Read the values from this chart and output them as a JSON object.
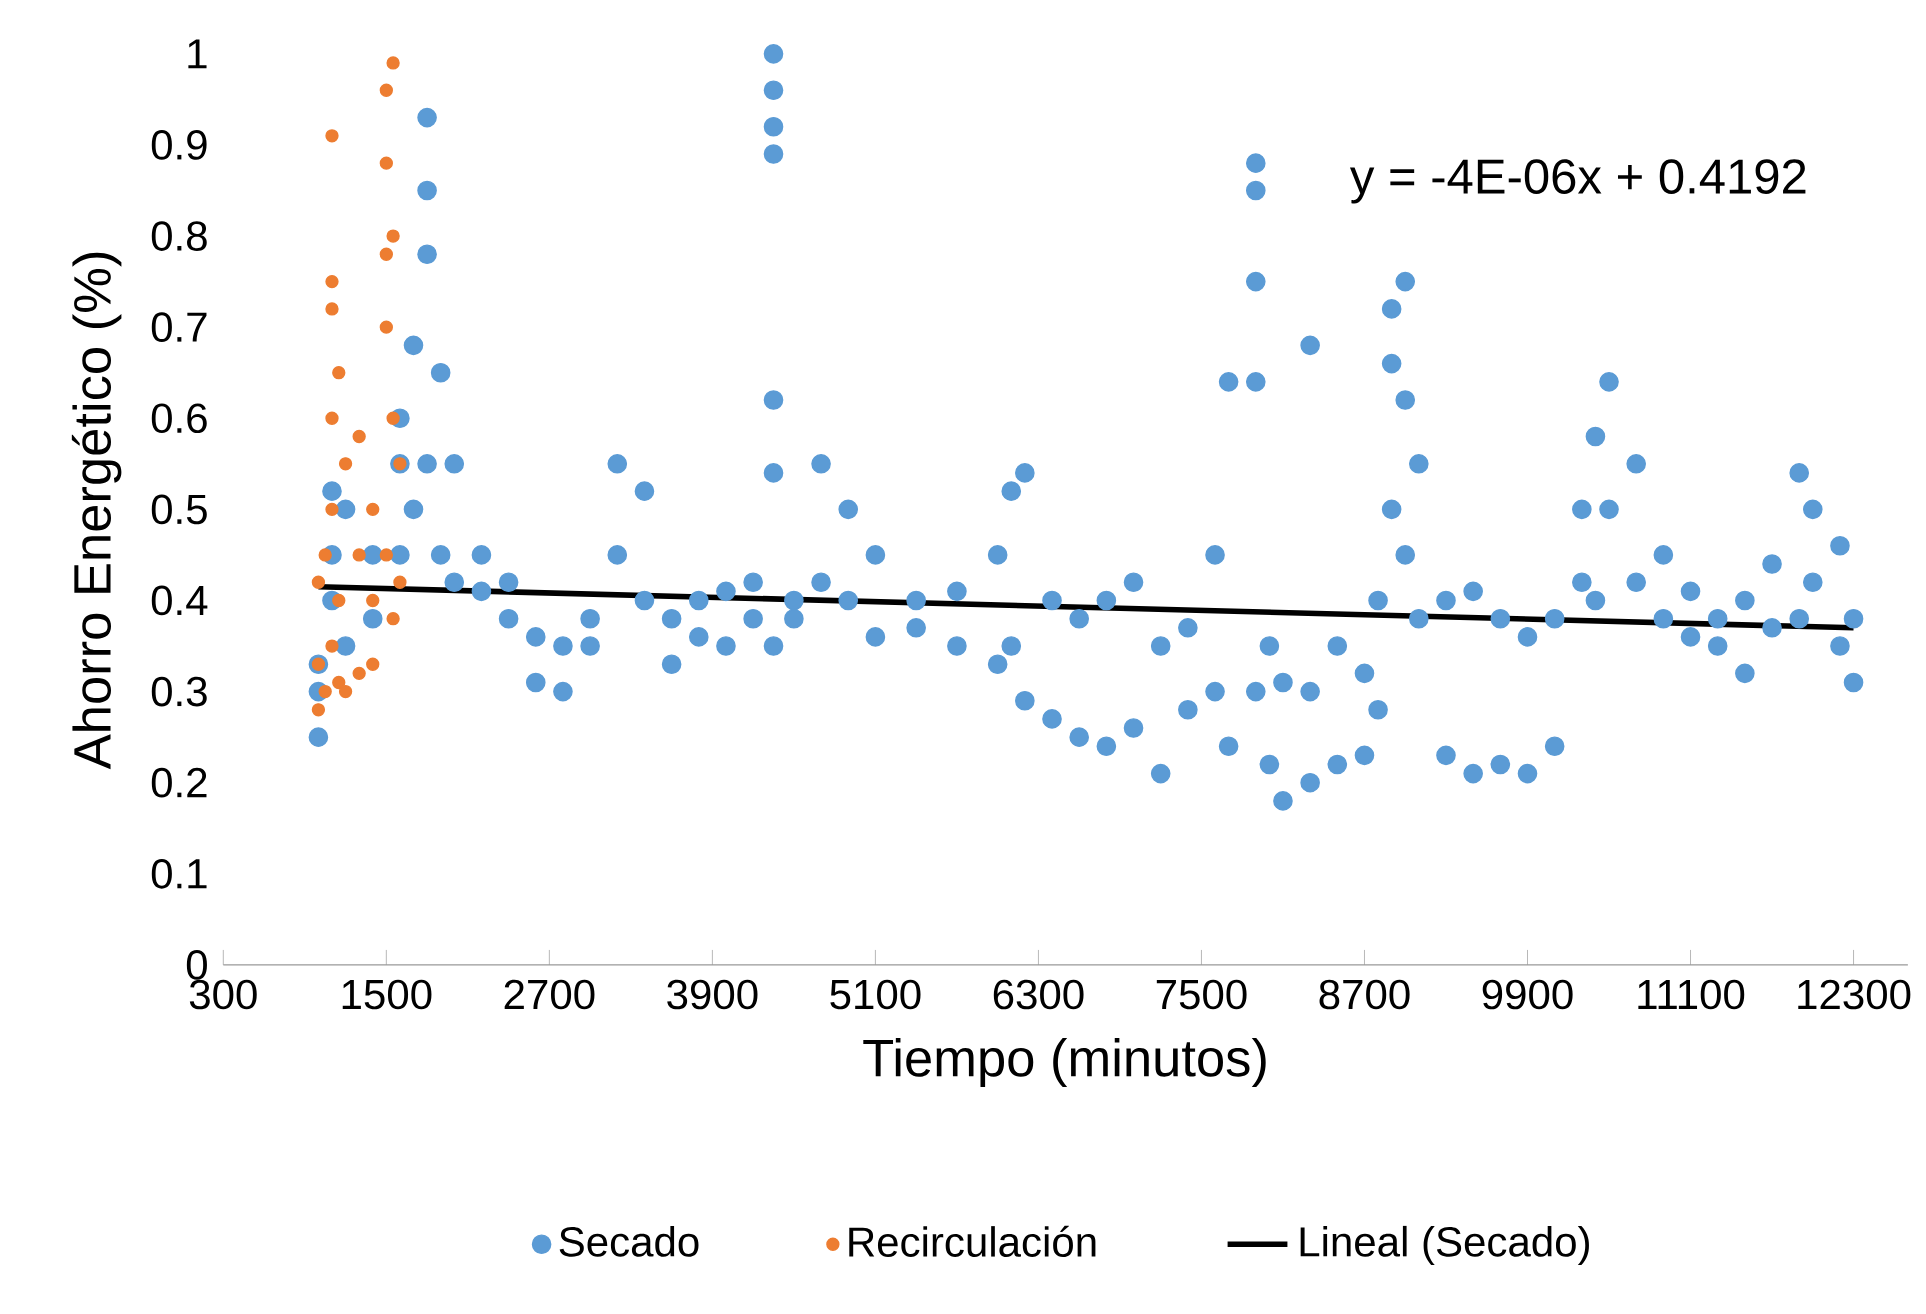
{
  "chart_data": {
    "type": "scatter",
    "xlabel": "Tiempo (minutos)",
    "ylabel": "Ahorro Energético (%)",
    "xlim": [
      300,
      12700
    ],
    "ylim": [
      0,
      1
    ],
    "xticks": [
      300,
      1500,
      2700,
      3900,
      5100,
      6300,
      7500,
      8700,
      9900,
      11100,
      12300
    ],
    "yticks": [
      0,
      {
        "value": 0.1,
        "label": "0.1"
      },
      {
        "value": 0.2,
        "label": "0.2"
      },
      {
        "value": 0.3,
        "label": "0.3"
      },
      {
        "value": 0.4,
        "label": "0.4"
      },
      {
        "value": 0.5,
        "label": "0.5"
      },
      {
        "value": 0.6,
        "label": "0.6"
      },
      {
        "value": 0.7,
        "label": "0.7"
      },
      {
        "value": 0.8,
        "label": "0.8"
      },
      {
        "value": 0.9,
        "label": "0.9"
      },
      1
    ],
    "grid": false,
    "legend": "bottom",
    "annotations": [
      "y = -4E-06x + 0.4192"
    ],
    "series": [
      {
        "name": "Secado",
        "color": "#5b9bd5",
        "x": [
          1000,
          1000,
          1000,
          1100,
          1100,
          1100,
          1200,
          1200,
          1400,
          1400,
          1600,
          1600,
          1600,
          1700,
          1700,
          1800,
          1800,
          1800,
          1800,
          1900,
          1900,
          2000,
          2000,
          2200,
          2200,
          2400,
          2400,
          2600,
          2600,
          2800,
          2800,
          3000,
          3000,
          3200,
          3200,
          3400,
          3400,
          3600,
          3600,
          3800,
          3800,
          4000,
          4000,
          4200,
          4200,
          4350,
          4350,
          4350,
          4350,
          4350,
          4350,
          4350,
          4500,
          4500,
          4700,
          4700,
          4900,
          4900,
          5100,
          5100,
          5400,
          5400,
          5700,
          5700,
          6000,
          6000,
          6100,
          6100,
          6200,
          6200,
          6400,
          6400,
          6600,
          6600,
          6800,
          6800,
          7000,
          7000,
          7200,
          7200,
          7400,
          7400,
          7600,
          7600,
          7700,
          7700,
          7900,
          7900,
          7900,
          7900,
          7900,
          8000,
          8000,
          8100,
          8100,
          8300,
          8300,
          8300,
          8500,
          8500,
          8700,
          8700,
          8800,
          8800,
          8900,
          8900,
          8900,
          9000,
          9000,
          9000,
          9100,
          9100,
          9300,
          9300,
          9500,
          9500,
          9700,
          9700,
          9900,
          9900,
          10100,
          10100,
          10300,
          10300,
          10400,
          10400,
          10500,
          10500,
          10700,
          10700,
          10900,
          10900,
          11100,
          11100,
          11300,
          11300,
          11500,
          11500,
          11700,
          11700,
          11900,
          11900,
          12000,
          12000,
          12200,
          12200,
          12300,
          12300
        ],
        "values": [
          0.25,
          0.3,
          0.33,
          0.4,
          0.45,
          0.52,
          0.5,
          0.35,
          0.45,
          0.38,
          0.55,
          0.6,
          0.45,
          0.68,
          0.5,
          0.93,
          0.85,
          0.78,
          0.55,
          0.65,
          0.45,
          0.55,
          0.42,
          0.45,
          0.41,
          0.42,
          0.38,
          0.31,
          0.36,
          0.35,
          0.3,
          0.38,
          0.35,
          0.45,
          0.55,
          0.52,
          0.4,
          0.38,
          0.33,
          0.4,
          0.36,
          0.41,
          0.35,
          0.38,
          0.42,
          1.0,
          0.96,
          0.92,
          0.89,
          0.62,
          0.54,
          0.35,
          0.4,
          0.38,
          0.55,
          0.42,
          0.5,
          0.4,
          0.45,
          0.36,
          0.4,
          0.37,
          0.41,
          0.35,
          0.45,
          0.33,
          0.52,
          0.35,
          0.54,
          0.29,
          0.4,
          0.27,
          0.38,
          0.25,
          0.4,
          0.24,
          0.42,
          0.26,
          0.35,
          0.21,
          0.37,
          0.28,
          0.45,
          0.3,
          0.64,
          0.24,
          0.88,
          0.85,
          0.75,
          0.64,
          0.3,
          0.35,
          0.22,
          0.31,
          0.18,
          0.68,
          0.3,
          0.2,
          0.35,
          0.22,
          0.32,
          0.23,
          0.4,
          0.28,
          0.66,
          0.72,
          0.5,
          0.75,
          0.62,
          0.45,
          0.55,
          0.38,
          0.4,
          0.23,
          0.41,
          0.21,
          0.38,
          0.22,
          0.36,
          0.21,
          0.38,
          0.24,
          0.5,
          0.42,
          0.58,
          0.4,
          0.64,
          0.5,
          0.55,
          0.42,
          0.45,
          0.38,
          0.41,
          0.36,
          0.38,
          0.35,
          0.4,
          0.32,
          0.44,
          0.37,
          0.54,
          0.38,
          0.5,
          0.42,
          0.46,
          0.35,
          0.38,
          0.31
        ]
      },
      {
        "name": "Recirculación",
        "color": "#ed7d31",
        "x": [
          1000,
          1000,
          1000,
          1050,
          1050,
          1100,
          1100,
          1100,
          1100,
          1100,
          1100,
          1150,
          1150,
          1150,
          1200,
          1200,
          1300,
          1300,
          1300,
          1400,
          1400,
          1400,
          1500,
          1500,
          1500,
          1500,
          1500,
          1550,
          1550,
          1550,
          1550,
          1600,
          1600
        ],
        "values": [
          0.28,
          0.33,
          0.42,
          0.45,
          0.3,
          0.91,
          0.75,
          0.72,
          0.6,
          0.5,
          0.35,
          0.65,
          0.4,
          0.31,
          0.55,
          0.3,
          0.58,
          0.45,
          0.32,
          0.5,
          0.4,
          0.33,
          0.96,
          0.88,
          0.78,
          0.7,
          0.45,
          0.99,
          0.8,
          0.6,
          0.38,
          0.55,
          0.42
        ]
      },
      {
        "name": "Lineal (Secado)",
        "type": "line",
        "color": "#000000",
        "x": [
          1000,
          12300
        ],
        "values": [
          0.415,
          0.37
        ]
      }
    ]
  }
}
